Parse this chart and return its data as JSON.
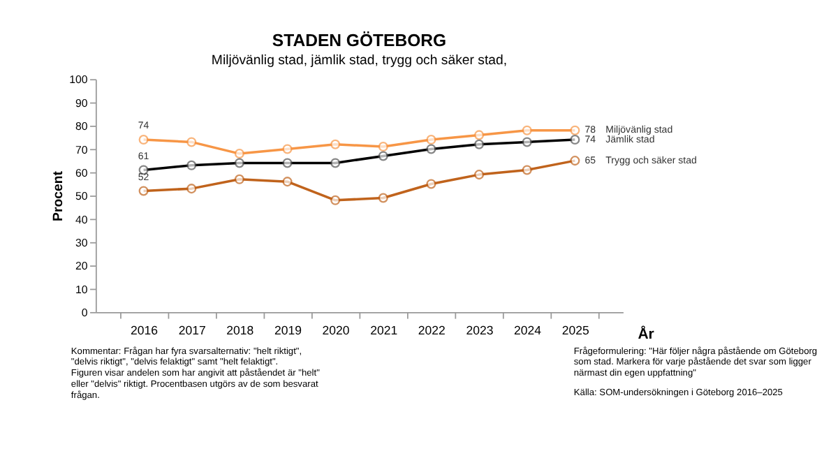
{
  "chart_data": {
    "type": "line",
    "title": "STADEN GÖTEBORG",
    "subtitle": "Miljövänlig stad, jämlik stad, trygg och säker stad,",
    "xlabel": "År",
    "ylabel": "Procent",
    "categories": [
      "2016",
      "2017",
      "2018",
      "2019",
      "2020",
      "2021",
      "2022",
      "2023",
      "2024",
      "2025"
    ],
    "series": [
      {
        "name": "Miljövänlig stad",
        "color": "#f79646",
        "values": [
          74,
          73,
          68,
          70,
          72,
          71,
          74,
          76,
          78,
          78
        ],
        "value_labels": [
          "74",
          null,
          null,
          null,
          null,
          null,
          null,
          null,
          null,
          "78"
        ]
      },
      {
        "name": "Jämlik stad",
        "color": "#000000",
        "values": [
          61,
          63,
          64,
          64,
          64,
          67,
          70,
          72,
          73,
          74
        ],
        "value_labels": [
          "61",
          null,
          null,
          null,
          null,
          null,
          null,
          null,
          null,
          "74"
        ]
      },
      {
        "name": "Trygg och säker stad",
        "color": "#c0631c",
        "values": [
          52,
          53,
          57,
          56,
          48,
          49,
          55,
          59,
          61,
          65
        ],
        "value_labels": [
          "52",
          null,
          null,
          null,
          null,
          null,
          null,
          null,
          null,
          "65"
        ]
      }
    ],
    "ylim": [
      0,
      100
    ],
    "yticks": [
      0,
      10,
      20,
      30,
      40,
      50,
      60,
      70,
      80,
      90,
      100
    ],
    "grid": false,
    "legend": false,
    "marker": "circle",
    "line_style": "solid",
    "annotations": [
      "Kommentar: Frågan har fyra svarsalternativ: \"helt riktigt\", \"delvis riktigt\", \"delvis felaktigt\" samt \"helt felaktigt\". Figuren visar andelen som har angivit att påståendet är \"helt\" eller \"delvis\" riktigt. Procentbasen utgörs av de som besvarat frågan.",
      "Frågeformulering: \"Här följer några påstående om Göteborg som stad. Markera för varje påstående det svar som ligger närmast din egen uppfattning\"",
      "Källa: SOM-undersökningen i Göteborg 2016–2025"
    ]
  }
}
